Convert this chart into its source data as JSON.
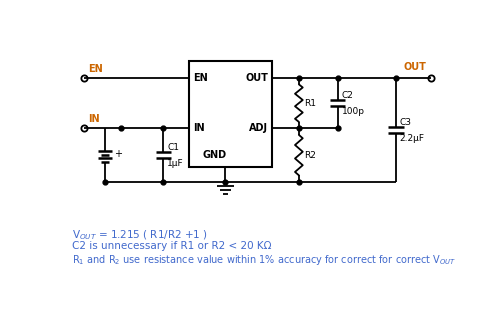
{
  "bg_color": "#ffffff",
  "line_color": "#000000",
  "label_color": "#cc6600",
  "blue_color": "#4169cc",
  "fig_width": 5.0,
  "fig_height": 3.3,
  "dpi": 100,
  "formula_line1": "V$_{OUT}$ = 1.215 ( R1/R2 +1 )",
  "formula_line2": "C2 is unnecessary if R1 or R2 < 20 KΩ",
  "formula_line3": "R$_{1}$ and R$_{2}$ use resistance value within 1% accuracy for correct for correct V$_{OUT}$"
}
